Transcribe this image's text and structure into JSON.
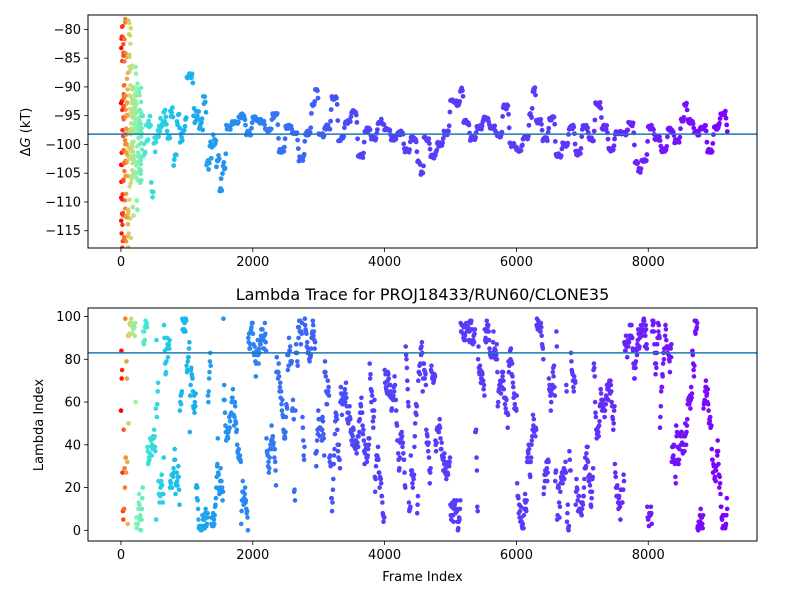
{
  "chart_data": [
    {
      "type": "scatter",
      "title": "",
      "xlabel": "",
      "ylabel": "ΔG (kT)",
      "ylabel_parts": {
        "delta": "Δ",
        "var": "G",
        "unit": " (kT)"
      },
      "xlim": [
        -500,
        9650
      ],
      "ylim": [
        -118,
        -77.5
      ],
      "xticks": [
        0,
        2000,
        4000,
        6000,
        8000
      ],
      "yticks": [
        -115,
        -110,
        -105,
        -100,
        -95,
        -90,
        -85,
        -80
      ],
      "xtick_labels": [
        "0",
        "2000",
        "4000",
        "6000",
        "8000"
      ],
      "ytick_labels": [
        "−115",
        "−110",
        "−105",
        "−100",
        "−95",
        "−90",
        "−85",
        "−80"
      ],
      "hline": {
        "y": -98.2,
        "color": "#1f77b4"
      },
      "colormap": "rainbow",
      "n_frames": 9200,
      "trace": [
        [
          0,
          -95
        ],
        [
          20,
          -117
        ],
        [
          40,
          -80
        ],
        [
          60,
          -110
        ],
        [
          80,
          -88
        ],
        [
          100,
          -108
        ],
        [
          120,
          -90
        ],
        [
          140,
          -115
        ],
        [
          160,
          -86
        ],
        [
          180,
          -112
        ],
        [
          200,
          -95
        ],
        [
          220,
          -87
        ],
        [
          240,
          -110
        ],
        [
          260,
          -100
        ],
        [
          280,
          -97
        ],
        [
          300,
          -95
        ],
        [
          340,
          -101
        ],
        [
          380,
          -98
        ],
        [
          420,
          -96
        ],
        [
          460,
          -108
        ],
        [
          500,
          -100
        ],
        [
          560,
          -98
        ],
        [
          600,
          -96
        ],
        [
          650,
          -95
        ],
        [
          700,
          -99
        ],
        [
          750,
          -95
        ],
        [
          800,
          -103
        ],
        [
          850,
          -96
        ],
        [
          900,
          -99
        ],
        [
          950,
          -97
        ],
        [
          1000,
          -88
        ],
        [
          1050,
          -88
        ],
        [
          1100,
          -95
        ],
        [
          1200,
          -97
        ],
        [
          1250,
          -92
        ],
        [
          1300,
          -104
        ],
        [
          1350,
          -101
        ],
        [
          1400,
          -99
        ],
        [
          1450,
          -103
        ],
        [
          1500,
          -107
        ],
        [
          1550,
          -103
        ],
        [
          1600,
          -97
        ],
        [
          1700,
          -96
        ],
        [
          1800,
          -95
        ],
        [
          1900,
          -98
        ],
        [
          2000,
          -95.5
        ],
        [
          2100,
          -96
        ],
        [
          2200,
          -97.5
        ],
        [
          2300,
          -95
        ],
        [
          2400,
          -101
        ],
        [
          2500,
          -97
        ],
        [
          2600,
          -98
        ],
        [
          2700,
          -102.5
        ],
        [
          2800,
          -98
        ],
        [
          2900,
          -93
        ],
        [
          2950,
          -90.5
        ],
        [
          3000,
          -98.5
        ],
        [
          3100,
          -97
        ],
        [
          3200,
          -92
        ],
        [
          3300,
          -99
        ],
        [
          3400,
          -96
        ],
        [
          3500,
          -94.5
        ],
        [
          3600,
          -102
        ],
        [
          3700,
          -97.5
        ],
        [
          3800,
          -99
        ],
        [
          3900,
          -96
        ],
        [
          4000,
          -97.5
        ],
        [
          4100,
          -99
        ],
        [
          4200,
          -98
        ],
        [
          4300,
          -101
        ],
        [
          4400,
          -99
        ],
        [
          4500,
          -103
        ],
        [
          4550,
          -105
        ],
        [
          4600,
          -99
        ],
        [
          4700,
          -102
        ],
        [
          4800,
          -100
        ],
        [
          4900,
          -98
        ],
        [
          5000,
          -92.5
        ],
        [
          5100,
          -93
        ],
        [
          5150,
          -90.5
        ],
        [
          5200,
          -96
        ],
        [
          5300,
          -99
        ],
        [
          5400,
          -97
        ],
        [
          5500,
          -95.5
        ],
        [
          5600,
          -97
        ],
        [
          5700,
          -98.5
        ],
        [
          5800,
          -93.5
        ],
        [
          5900,
          -100
        ],
        [
          6000,
          -101
        ],
        [
          6100,
          -99
        ],
        [
          6200,
          -95
        ],
        [
          6250,
          -90.5
        ],
        [
          6300,
          -96
        ],
        [
          6400,
          -99
        ],
        [
          6500,
          -95.5
        ],
        [
          6600,
          -102
        ],
        [
          6700,
          -100
        ],
        [
          6800,
          -97
        ],
        [
          6900,
          -101.5
        ],
        [
          7000,
          -97
        ],
        [
          7100,
          -99
        ],
        [
          7200,
          -93
        ],
        [
          7300,
          -97
        ],
        [
          7400,
          -101
        ],
        [
          7500,
          -98
        ],
        [
          7600,
          -98
        ],
        [
          7700,
          -96.5
        ],
        [
          7800,
          -103
        ],
        [
          7850,
          -104.5
        ],
        [
          7900,
          -103
        ],
        [
          8000,
          -97
        ],
        [
          8100,
          -99
        ],
        [
          8200,
          -101
        ],
        [
          8300,
          -97.5
        ],
        [
          8400,
          -99.5
        ],
        [
          8500,
          -96
        ],
        [
          8550,
          -93
        ],
        [
          8600,
          -96
        ],
        [
          8700,
          -98
        ],
        [
          8800,
          -97
        ],
        [
          8900,
          -101
        ],
        [
          9000,
          -97
        ],
        [
          9100,
          -94.5
        ],
        [
          9200,
          -97.5
        ]
      ]
    },
    {
      "type": "scatter",
      "title": "Lambda Trace for PROJ18433/RUN60/CLONE35",
      "xlabel": "Frame Index",
      "ylabel": "Lambda Index",
      "xlim": [
        -500,
        9650
      ],
      "ylim": [
        -5,
        104
      ],
      "xticks": [
        0,
        2000,
        4000,
        6000,
        8000
      ],
      "yticks": [
        0,
        20,
        40,
        60,
        80,
        100
      ],
      "xtick_labels": [
        "0",
        "2000",
        "4000",
        "6000",
        "8000"
      ],
      "ytick_labels": [
        "0",
        "20",
        "40",
        "60",
        "80",
        "100"
      ],
      "hline": {
        "y": 83,
        "color": "#1f77b4"
      },
      "colormap": "rainbow",
      "n_frames": 9200,
      "lambda_range": [
        0,
        99
      ]
    }
  ]
}
